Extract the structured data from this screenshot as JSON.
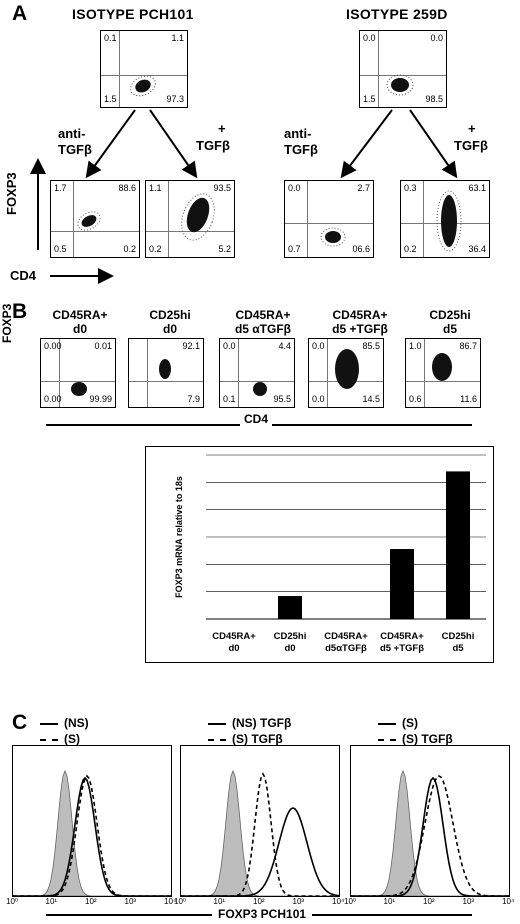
{
  "panel_a": {
    "letter": "A",
    "isotypes": [
      {
        "title": "ISOTYPE PCH101",
        "quadrants": {
          "ul": "0.1",
          "ur": "1.1",
          "ll": "1.5",
          "lr": "97.3"
        }
      },
      {
        "title": "ISOTYPE 259D",
        "quadrants": {
          "ul": "0.0",
          "ur": "0.0",
          "ll": "1.5",
          "lr": "98.5"
        }
      }
    ],
    "arrow_labels": {
      "anti": "anti-",
      "tgf": "TGFβ",
      "plus": "+"
    },
    "treated": [
      {
        "quadrants": {
          "ul": "1.7",
          "ur": "88.6",
          "ll": "0.5",
          "lr": "0.2"
        }
      },
      {
        "quadrants": {
          "ul": "1.1",
          "ur": "93.5",
          "ll": "0.2",
          "lr": "5.2"
        }
      },
      {
        "quadrants": {
          "ul": "0.0",
          "ur": "2.7",
          "ll": "0.7",
          "lr": "06.6"
        }
      },
      {
        "quadrants": {
          "ul": "0.3",
          "ur": "63.1",
          "ll": "0.2",
          "lr": "36.4"
        }
      }
    ],
    "y_axis": "FOXP3",
    "x_axis": "CD4"
  },
  "panel_b": {
    "letter": "B",
    "columns": [
      {
        "line1": "CD45RA+",
        "line2": "d0",
        "quadrants": {
          "ul": "0.00",
          "ur": "0.01",
          "ll": "0.00",
          "lr": "99.99"
        }
      },
      {
        "line1": "CD25hi",
        "line2": "d0",
        "quadrants": {
          "ul": "",
          "ur": "92.1",
          "ll": "",
          "lr": "7.9"
        }
      },
      {
        "line1": "CD45RA+",
        "line2": "d5 αTGFβ",
        "quadrants": {
          "ul": "0.0",
          "ur": "4.4",
          "ll": "0.1",
          "lr": "95.5"
        }
      },
      {
        "line1": "CD45RA+",
        "line2": "d5 +TGFβ",
        "quadrants": {
          "ul": "0.0",
          "ur": "85.5",
          "ll": "0.0",
          "lr": "14.5"
        }
      },
      {
        "line1": "CD25hi",
        "line2": "d5",
        "quadrants": {
          "ul": "1.0",
          "ur": "86.7",
          "ll": "0.6",
          "lr": "11.6"
        }
      }
    ],
    "y_axis": "FOXP3",
    "x_axis": "CD4"
  },
  "chart_data": {
    "type": "bar",
    "categories": [
      "CD45RA+ d0",
      "CD25hi d0",
      "CD45RA+ d5αTGFβ",
      "CD45RA+ d5 +TGFβ",
      "CD25hi d5"
    ],
    "category_lines": [
      [
        "CD45RA+",
        "d0"
      ],
      [
        "CD25hi",
        "d0"
      ],
      [
        "CD45RA+",
        "d5αTGFβ"
      ],
      [
        "CD45RA+",
        "d5 +TGFβ"
      ],
      [
        "CD25hi",
        "d5"
      ]
    ],
    "values": [
      0,
      42,
      0,
      128,
      270
    ],
    "ylabel": "FOXP3 mRNA relative to 18s",
    "ylim": [
      0,
      300
    ],
    "grid": true,
    "bar_color": "#000000"
  },
  "panel_c": {
    "letter": "C",
    "histograms": [
      {
        "legend": [
          {
            "style": "solid",
            "text": "(NS)"
          },
          {
            "style": "dashed",
            "text": "(S)"
          }
        ]
      },
      {
        "legend": [
          {
            "style": "solid",
            "text": "(NS) TGFβ"
          },
          {
            "style": "dashed",
            "text": "(S)   TGFβ"
          }
        ]
      },
      {
        "legend": [
          {
            "style": "solid",
            "text": "(S)"
          },
          {
            "style": "dashed",
            "text": "(S) TGFβ"
          }
        ]
      }
    ],
    "x_axis": "FOXP3 PCH101",
    "x_ticks": [
      "10⁰",
      "10¹",
      "10²",
      "10³",
      "10⁴"
    ]
  }
}
